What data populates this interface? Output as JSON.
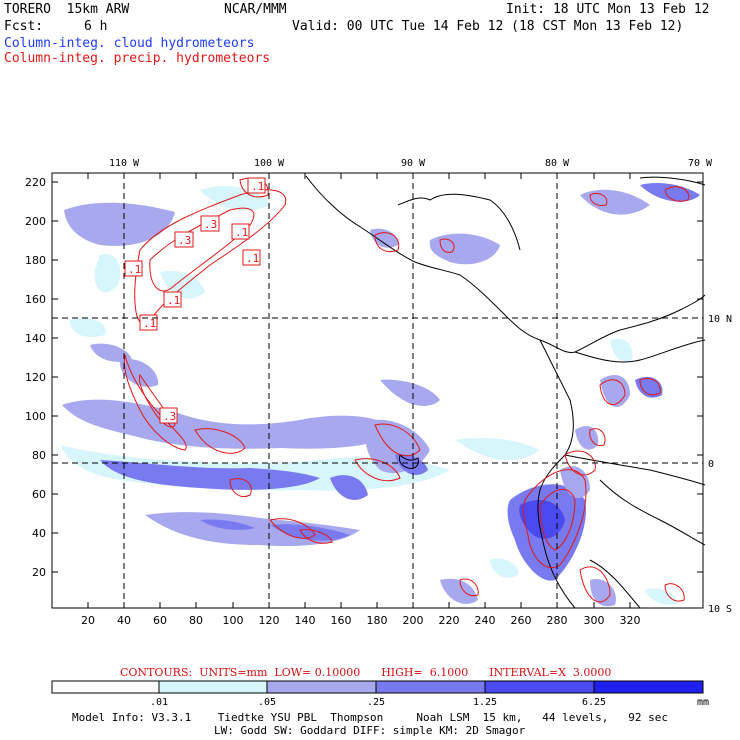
{
  "header": {
    "model": "TORERO  15km ARW",
    "org": "NCAR/MMM",
    "init": "Init: 18 UTC Mon 13 Feb 12",
    "fcst_label": "Fcst:",
    "fcst_value": "6 h",
    "valid": "Valid: 00 UTC Tue 14 Feb 12 (18 CST Mon 13 Feb 12)",
    "field1": "Column-integ. cloud hydrometeors",
    "field2": "Column-integ. precip. hydrometeors"
  },
  "map": {
    "lon_labels": [
      "110 W",
      "100 W",
      "90 W",
      "80 W",
      "70 W"
    ],
    "lat_labels": [
      "10 N",
      "0",
      "10 S"
    ],
    "x_ticks": [
      "20",
      "40",
      "60",
      "80",
      "100",
      "120",
      "140",
      "160",
      "180",
      "200",
      "220",
      "240",
      "260",
      "280",
      "300",
      "320"
    ],
    "y_ticks": [
      "220",
      "200",
      "180",
      "160",
      "140",
      "120",
      "100",
      "80",
      "60",
      "40",
      "20"
    ],
    "contour_labels": [
      ".1",
      ".1",
      ".3",
      ".3",
      ".1",
      ".1",
      ".1",
      ".1",
      ".1",
      ".3"
    ]
  },
  "contours_line": {
    "text": "CONTOURS:  UNITS=mm  LOW= 0.10000      HIGH=  6.1000      INTERVAL=X  3.0000"
  },
  "colorbar": {
    "labels": [
      ".01",
      ".05",
      ".25",
      "1.25",
      "6.25"
    ],
    "units": "mm",
    "colors": [
      "#ffffff",
      "#d6f6fc",
      "#a8a8ee",
      "#7a7af0",
      "#4a4af0",
      "#2020ee"
    ]
  },
  "footer": {
    "line1": "Model Info: V3.3.1    Tiedtke YSU PBL  Thompson     Noah LSM  15 km,   44 levels,   92 sec",
    "line2": "LW: Godd SW: Goddard DIFF: simple KM: 2D Smagor"
  }
}
